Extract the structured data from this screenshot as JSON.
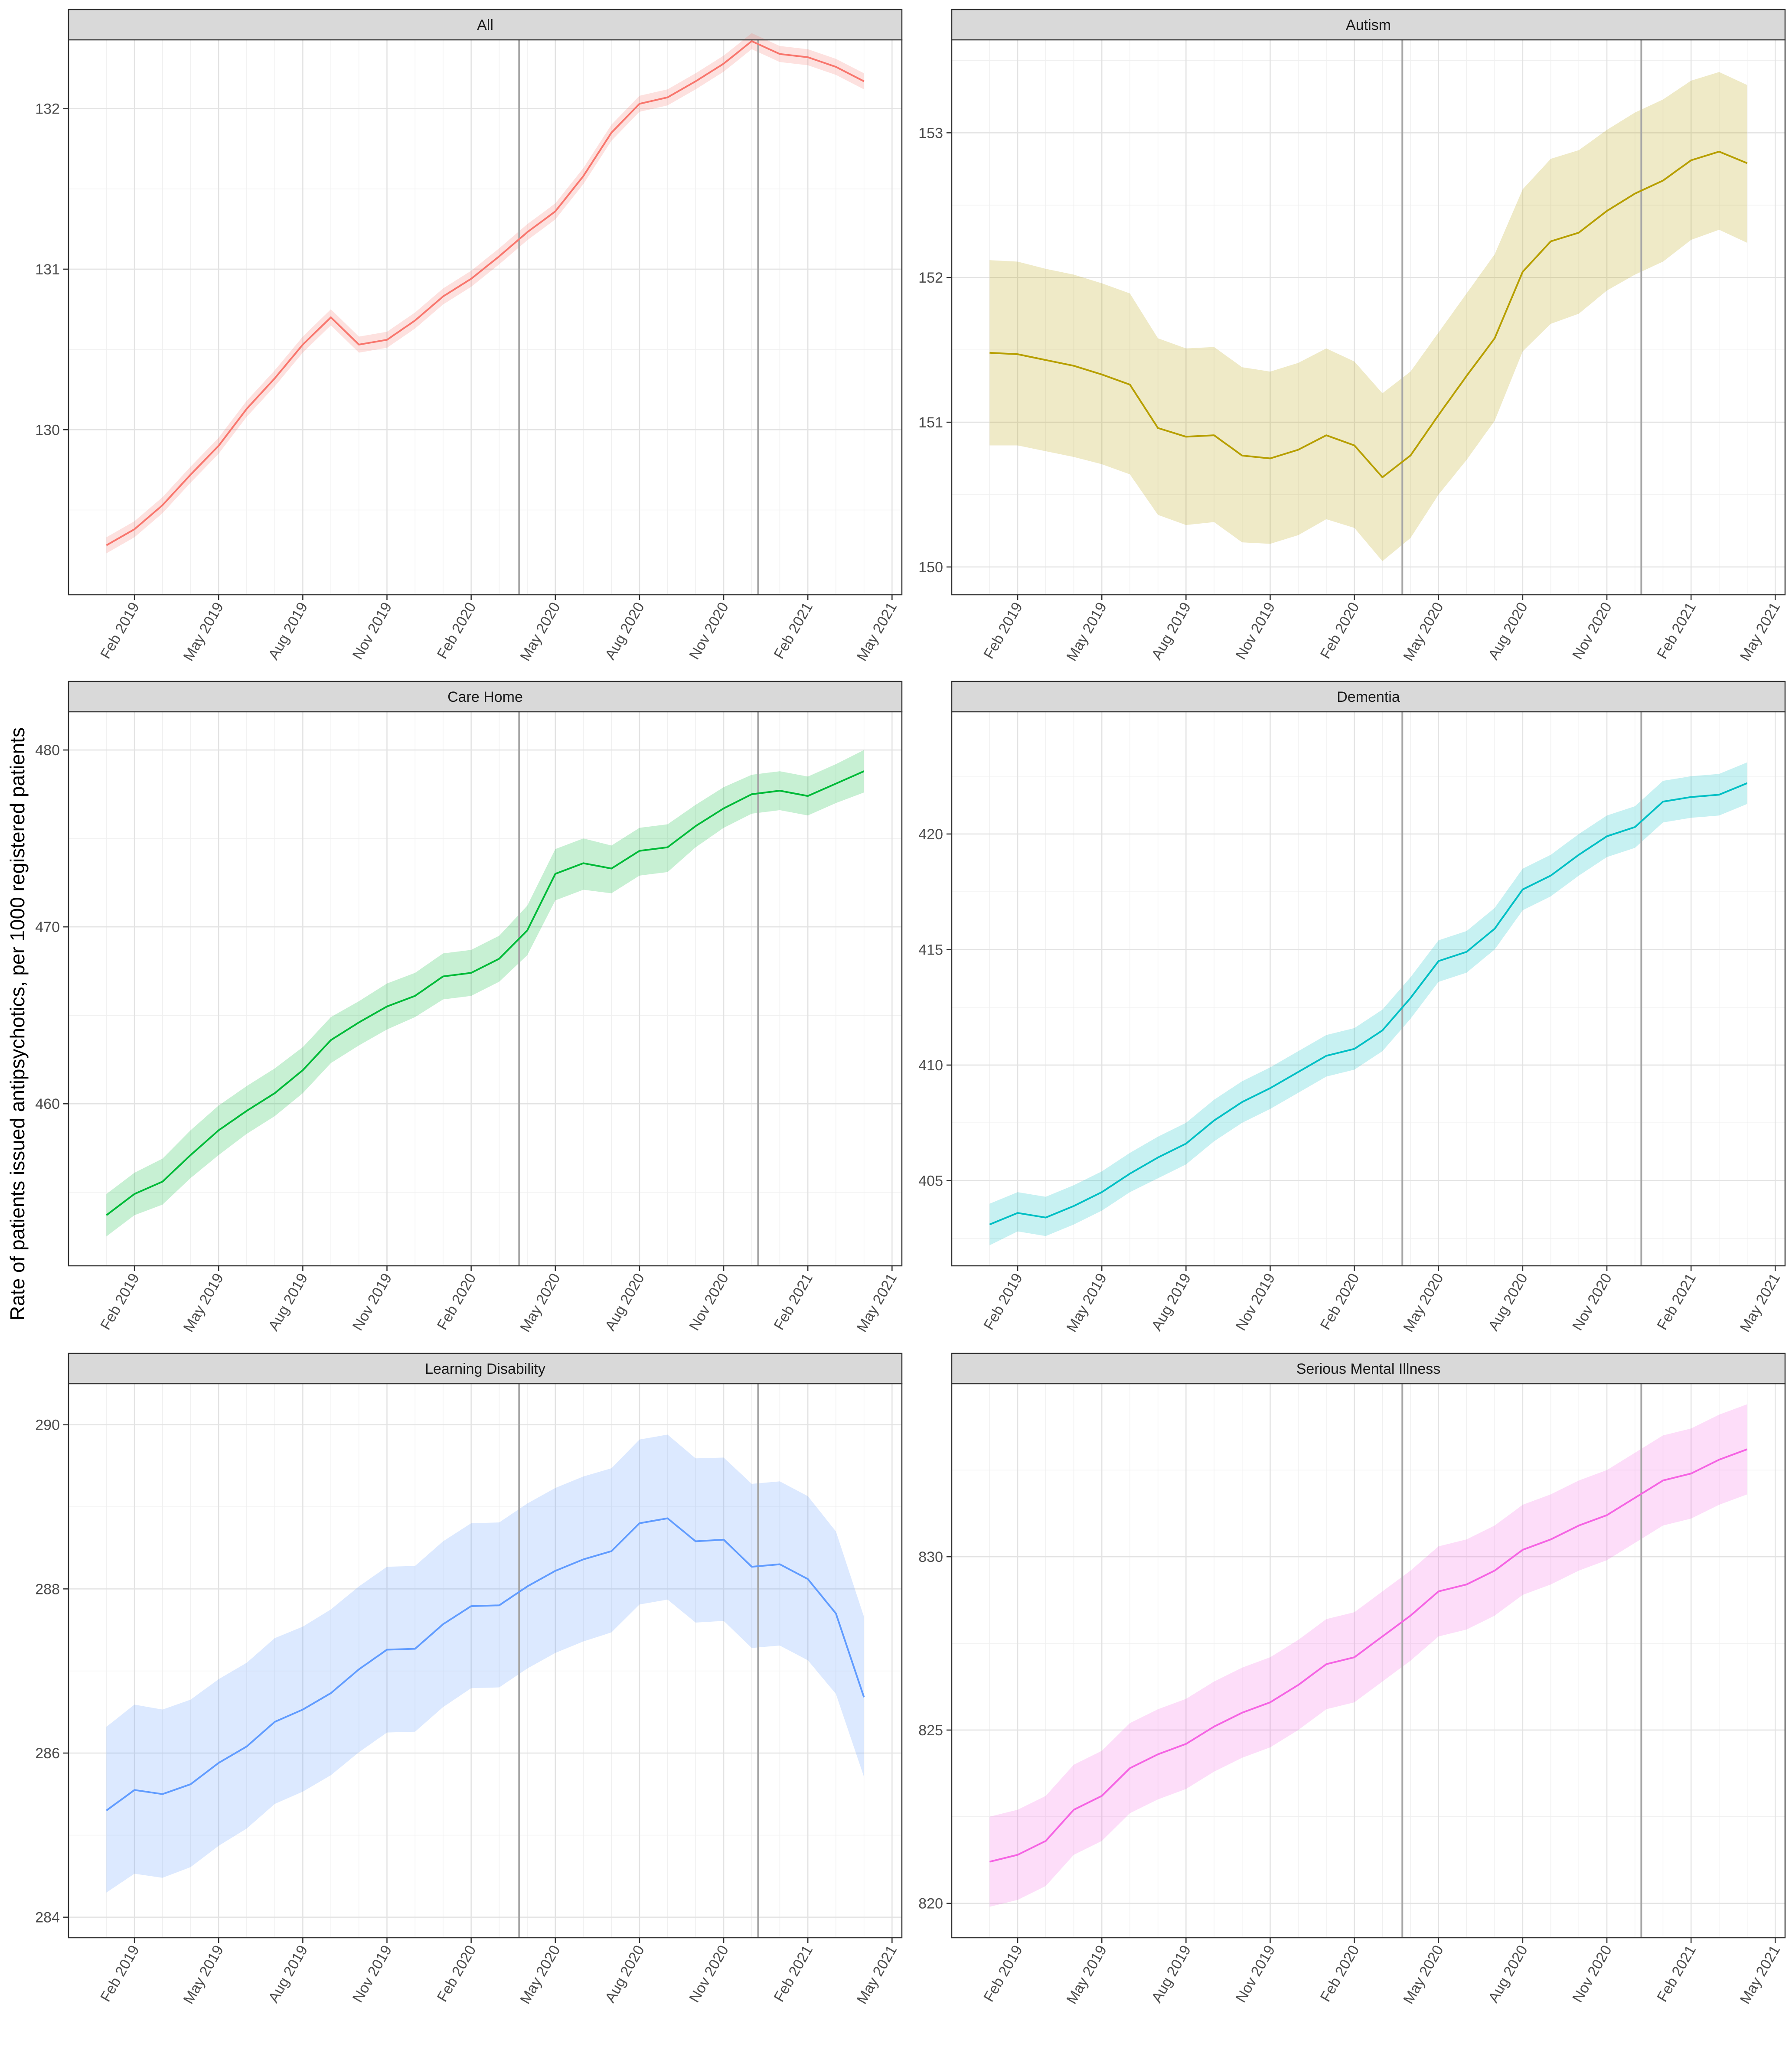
{
  "ylabel": "Rate of patients issued antipsychotics, per 1000 registered patients",
  "x_ticks": [
    "Feb 2019",
    "May 2019",
    "Aug 2019",
    "Nov 2019",
    "Feb 2020",
    "May 2020",
    "Aug 2020",
    "Nov 2020",
    "Feb 2021",
    "May 2021"
  ],
  "months": [
    "2019-01",
    "2019-02",
    "2019-03",
    "2019-04",
    "2019-05",
    "2019-06",
    "2019-07",
    "2019-08",
    "2019-09",
    "2019-10",
    "2019-11",
    "2019-12",
    "2020-01",
    "2020-02",
    "2020-03",
    "2020-04",
    "2020-05",
    "2020-06",
    "2020-07",
    "2020-08",
    "2020-09",
    "2020-10",
    "2020-11",
    "2020-12",
    "2021-01",
    "2021-02",
    "2021-03",
    "2021-04"
  ],
  "vlines": [
    "2020-03-23",
    "2020-12-08"
  ],
  "chart_data": [
    {
      "type": "line",
      "title": "All",
      "color": "#F8766D",
      "yticks": [
        130,
        131,
        132
      ],
      "ylim": [
        129.1,
        132.3
      ],
      "values": [
        129.28,
        129.38,
        129.53,
        129.72,
        129.9,
        130.13,
        130.32,
        130.53,
        130.7,
        130.53,
        130.56,
        130.68,
        130.83,
        130.94,
        131.08,
        131.23,
        131.36,
        131.58,
        131.85,
        132.03,
        132.07,
        132.17,
        132.28,
        132.42,
        132.34,
        132.32,
        132.26,
        132.17
      ],
      "lower": [
        129.23,
        129.33,
        129.48,
        129.67,
        129.85,
        130.08,
        130.27,
        130.48,
        130.65,
        130.48,
        130.51,
        130.63,
        130.78,
        130.89,
        131.03,
        131.18,
        131.31,
        131.53,
        131.8,
        131.98,
        132.02,
        132.12,
        132.23,
        132.37,
        132.29,
        132.27,
        132.21,
        132.12
      ],
      "upper": [
        129.33,
        129.43,
        129.58,
        129.77,
        129.95,
        130.18,
        130.37,
        130.58,
        130.75,
        130.58,
        130.61,
        130.73,
        130.88,
        130.99,
        131.13,
        131.28,
        131.41,
        131.63,
        131.9,
        132.08,
        132.12,
        132.22,
        132.33,
        132.47,
        132.39,
        132.37,
        132.31,
        132.22
      ]
    },
    {
      "type": "line",
      "title": "Autism",
      "color": "#B79F00",
      "yticks": [
        150,
        151,
        152,
        153
      ],
      "ylim": [
        149.95,
        153.5
      ],
      "values": [
        151.48,
        151.47,
        151.43,
        151.39,
        151.33,
        151.26,
        150.96,
        150.9,
        150.91,
        150.77,
        150.75,
        150.81,
        150.91,
        150.84,
        150.62,
        150.77,
        151.05,
        151.32,
        151.58,
        152.04,
        152.25,
        152.31,
        152.46,
        152.58,
        152.67,
        152.81,
        152.87,
        152.79
      ],
      "lower": [
        150.84,
        150.84,
        150.8,
        150.76,
        150.71,
        150.64,
        150.36,
        150.29,
        150.31,
        150.17,
        150.16,
        150.22,
        150.33,
        150.27,
        150.04,
        150.2,
        150.5,
        150.74,
        151.01,
        151.49,
        151.68,
        151.75,
        151.91,
        152.02,
        152.11,
        152.26,
        152.33,
        152.24
      ],
      "upper": [
        152.12,
        152.11,
        152.06,
        152.02,
        151.96,
        151.89,
        151.58,
        151.51,
        151.52,
        151.38,
        151.35,
        151.41,
        151.51,
        151.42,
        151.2,
        151.35,
        151.62,
        151.89,
        152.16,
        152.61,
        152.82,
        152.88,
        153.02,
        153.14,
        153.23,
        153.36,
        153.42,
        153.33
      ]
    },
    {
      "type": "line",
      "title": "Care Home",
      "color": "#00BA38",
      "yticks": [
        460,
        470,
        480
      ],
      "ylim": [
        452,
        481
      ],
      "values": [
        453.7,
        454.9,
        455.6,
        457.1,
        458.5,
        459.6,
        460.6,
        461.9,
        463.6,
        464.6,
        465.5,
        466.1,
        467.2,
        467.4,
        468.2,
        469.8,
        473.0,
        473.6,
        473.3,
        474.3,
        474.5,
        475.7,
        476.7,
        477.5,
        477.7,
        477.4,
        478.1,
        478.8
      ],
      "lower": [
        452.5,
        453.7,
        454.3,
        455.8,
        457.1,
        458.3,
        459.3,
        460.6,
        462.3,
        463.3,
        464.2,
        464.9,
        465.9,
        466.1,
        466.9,
        468.4,
        471.5,
        472.1,
        471.9,
        472.9,
        473.1,
        474.5,
        475.6,
        476.4,
        476.6,
        476.3,
        477.0,
        477.6
      ],
      "upper": [
        454.9,
        456.1,
        456.9,
        458.5,
        459.9,
        461.0,
        462.0,
        463.2,
        464.9,
        465.8,
        466.8,
        467.4,
        468.5,
        468.7,
        469.5,
        471.2,
        474.4,
        475.0,
        474.6,
        475.6,
        475.8,
        476.9,
        477.9,
        478.6,
        478.8,
        478.5,
        479.2,
        480.0
      ]
    },
    {
      "type": "line",
      "title": "Dementia",
      "color": "#00BFC4",
      "yticks": [
        405,
        410,
        415,
        420
      ],
      "ylim": [
        402.2,
        424.4
      ],
      "values": [
        403.1,
        403.6,
        403.4,
        403.9,
        404.5,
        405.3,
        406.0,
        406.6,
        407.6,
        408.4,
        409.0,
        409.7,
        410.4,
        410.7,
        411.5,
        412.9,
        414.5,
        414.9,
        415.9,
        417.6,
        418.2,
        419.1,
        419.9,
        420.3,
        421.4,
        421.6,
        421.7,
        422.2
      ],
      "lower": [
        402.2,
        402.8,
        402.6,
        403.1,
        403.7,
        404.5,
        405.1,
        405.7,
        406.7,
        407.5,
        408.1,
        408.8,
        409.5,
        409.8,
        410.6,
        412.0,
        413.6,
        414.0,
        415.0,
        416.7,
        417.3,
        418.2,
        419.0,
        419.4,
        420.5,
        420.7,
        420.8,
        421.3
      ],
      "upper": [
        404.0,
        404.5,
        404.3,
        404.8,
        405.4,
        406.2,
        406.9,
        407.5,
        408.5,
        409.3,
        409.9,
        410.6,
        411.3,
        411.6,
        412.4,
        413.8,
        415.4,
        415.8,
        416.8,
        418.5,
        419.1,
        420.0,
        420.8,
        421.2,
        422.3,
        422.5,
        422.6,
        423.1
      ]
    },
    {
      "type": "line",
      "title": "Learning Disability",
      "color": "#619CFF",
      "yticks": [
        284,
        286,
        288,
        290
      ],
      "ylim": [
        284,
        290
      ],
      "values": [
        285.3,
        285.55,
        285.5,
        285.62,
        285.88,
        286.08,
        286.38,
        286.53,
        286.73,
        287.02,
        287.26,
        287.27,
        287.57,
        287.79,
        287.8,
        288.03,
        288.22,
        288.36,
        288.46,
        288.8,
        288.86,
        288.58,
        288.6,
        288.27,
        288.3,
        288.12,
        287.7,
        286.68
      ],
      "lower": [
        284.3,
        284.53,
        284.48,
        284.61,
        284.87,
        285.08,
        285.38,
        285.53,
        285.73,
        286.01,
        286.25,
        286.26,
        286.56,
        286.79,
        286.8,
        287.03,
        287.22,
        287.36,
        287.47,
        287.81,
        287.87,
        287.59,
        287.61,
        287.28,
        287.31,
        287.13,
        286.72,
        285.71
      ],
      "upper": [
        286.32,
        286.59,
        286.53,
        286.65,
        286.9,
        287.1,
        287.4,
        287.54,
        287.75,
        288.03,
        288.27,
        288.28,
        288.58,
        288.8,
        288.81,
        289.04,
        289.23,
        289.37,
        289.47,
        289.82,
        289.88,
        289.59,
        289.6,
        289.28,
        289.31,
        289.13,
        288.7,
        287.66
      ],
      "ylim_upper": 290.25
    },
    {
      "type": "line",
      "title": "Serious Mental Illness",
      "color": "#F564E3",
      "yticks": [
        820,
        825,
        830
      ],
      "ylim": [
        819.6,
        834.4
      ],
      "values": [
        821.2,
        821.4,
        821.8,
        822.7,
        823.1,
        823.9,
        824.3,
        824.6,
        825.1,
        825.5,
        825.8,
        826.3,
        826.9,
        827.1,
        827.7,
        828.3,
        829.0,
        829.2,
        829.6,
        830.2,
        830.5,
        830.9,
        831.2,
        831.7,
        832.2,
        832.4,
        832.8,
        833.1
      ],
      "lower": [
        819.9,
        820.1,
        820.5,
        821.4,
        821.8,
        822.6,
        823.0,
        823.3,
        823.8,
        824.2,
        824.5,
        825.0,
        825.6,
        825.8,
        826.4,
        827.0,
        827.7,
        827.9,
        828.3,
        828.9,
        829.2,
        829.6,
        829.9,
        830.4,
        830.9,
        831.1,
        831.5,
        831.8
      ],
      "upper": [
        822.5,
        822.7,
        823.1,
        824.0,
        824.4,
        825.2,
        825.6,
        825.9,
        826.4,
        826.8,
        827.1,
        827.6,
        828.2,
        828.4,
        829.0,
        829.6,
        830.3,
        830.5,
        830.9,
        831.5,
        831.8,
        832.2,
        832.5,
        833.0,
        833.5,
        833.7,
        834.1,
        834.4
      ]
    }
  ]
}
